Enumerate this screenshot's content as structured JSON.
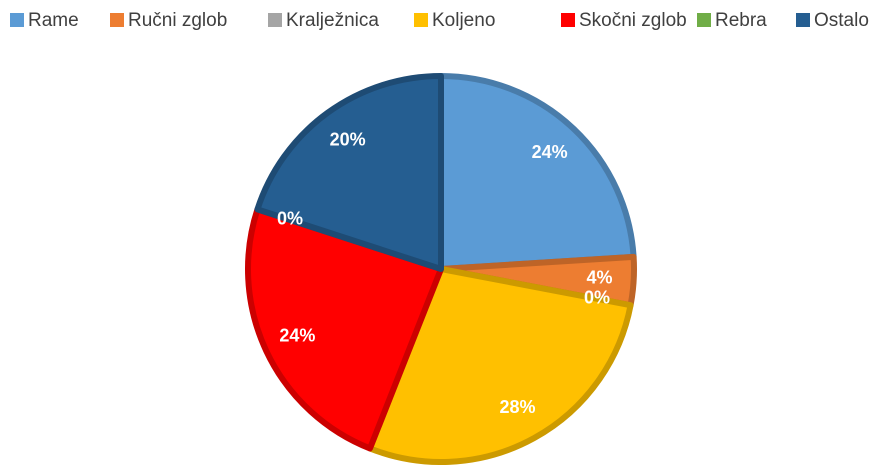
{
  "chart_data": {
    "type": "pie",
    "categories": [
      "Rame",
      "Ručni zglob",
      "Kralježnica",
      "Koljeno",
      "Skočni zglob",
      "Rebra",
      "Ostalo"
    ],
    "values": [
      24,
      4,
      0,
      28,
      24,
      0,
      20
    ],
    "value_labels": [
      "24%",
      "4%",
      "0%",
      "28%",
      "24%",
      "0%",
      "20%"
    ],
    "colors": [
      "#5b9bd5",
      "#ed7d31",
      "#a5a5a5",
      "#ffc000",
      "#ff0000",
      "#70ad47",
      "#255e91"
    ],
    "legend": "top"
  }
}
